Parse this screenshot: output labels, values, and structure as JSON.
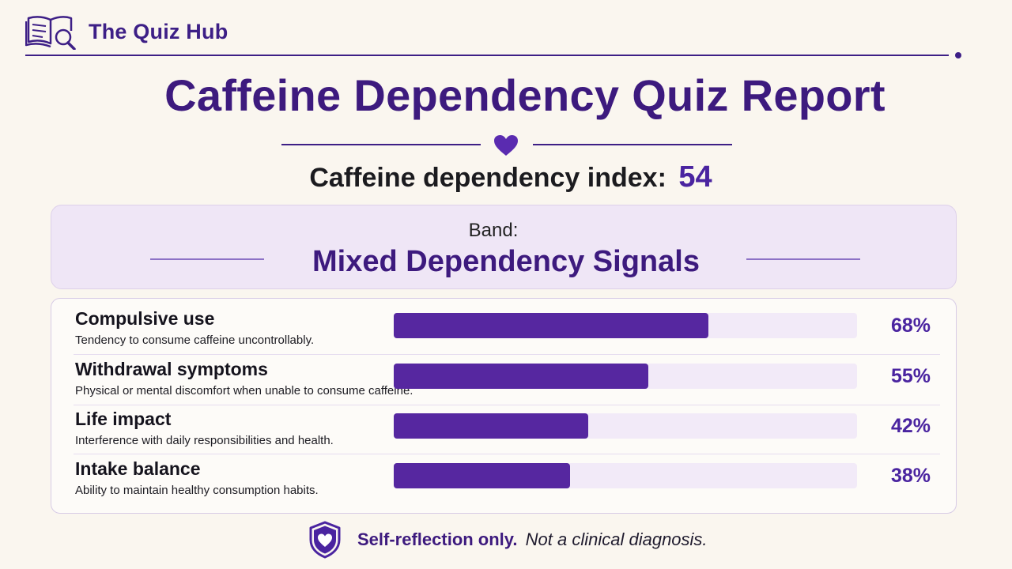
{
  "header": {
    "brand": "The Quiz Hub",
    "logo_icon": "book-magnifier-icon"
  },
  "report": {
    "title": "Caffeine Dependency Quiz Report",
    "index_label": "Caffeine dependency index:",
    "index_value": "54",
    "band_label": "Band:",
    "band_name": "Mixed Dependency Signals"
  },
  "metrics": [
    {
      "title": "Compulsive use",
      "description": "Tendency to consume caffeine uncontrollably.",
      "percent_label": "68%",
      "value": 68
    },
    {
      "title": "Withdrawal symptoms",
      "description": "Physical or mental discomfort when unable to consume caffeine.",
      "percent_label": "55%",
      "value": 55
    },
    {
      "title": "Life impact",
      "description": "Interference with daily responsibilities and health.",
      "percent_label": "42%",
      "value": 42
    },
    {
      "title": "Intake balance",
      "description": "Ability to maintain healthy consumption habits.",
      "percent_label": "38%",
      "value": 38
    }
  ],
  "footer": {
    "strong": "Self-reflection only.",
    "note": "Not a clinical diagnosis.",
    "icon": "shield-heart-icon"
  },
  "colors": {
    "accent": "#4a24a0",
    "bar_fill": "#5627a0",
    "bar_track": "#f2eaf8",
    "background": "#faf6ef"
  }
}
